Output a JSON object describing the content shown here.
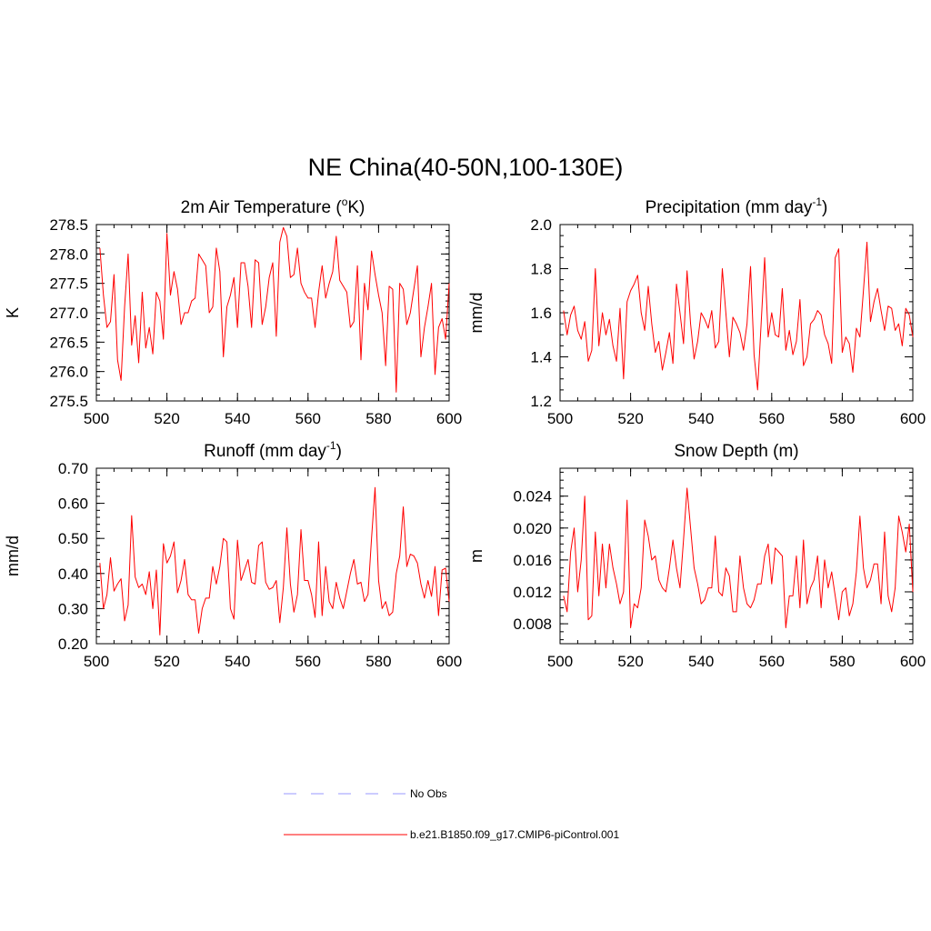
{
  "title": "NE China(40-50N,100-130E)",
  "colors": {
    "series": "#ff0000",
    "legend_obs": "#9999ff",
    "legend_model": "#ff0000",
    "axis": "#000000"
  },
  "legend": {
    "obs_label": "No Obs",
    "model_label": "b.e21.B1850.f09_g17.CMIP6-piControl.001"
  },
  "chart_data": [
    {
      "type": "line",
      "title": "2m Air Temperature (°K)",
      "title_parts": {
        "before": "2m Air Temperature (",
        "sup": "o",
        "after": "K)"
      },
      "xlabel": "",
      "ylabel": "K",
      "xlim": [
        500,
        600
      ],
      "ylim": [
        275.5,
        278.5
      ],
      "xticks": [
        500,
        520,
        540,
        560,
        580,
        600
      ],
      "xtick_labels": [
        "500",
        "520",
        "540",
        "560",
        "580",
        "600"
      ],
      "yticks": [
        275.5,
        276.0,
        276.5,
        277.0,
        277.5,
        278.0,
        278.5
      ],
      "ytick_labels": [
        "275.5",
        "276.0",
        "276.5",
        "277.0",
        "277.5",
        "278.0",
        "278.5"
      ],
      "ymin_step": 0.1,
      "series": [
        {
          "name": "b.e21.B1850.f09_g17.CMIP6-piControl.001",
          "x_start": 501,
          "x_step": 1,
          "values": [
            278.1,
            277.3,
            276.75,
            276.85,
            277.65,
            276.2,
            275.85,
            277.1,
            278.0,
            276.45,
            276.95,
            276.15,
            277.35,
            276.4,
            276.75,
            276.3,
            277.35,
            277.2,
            276.55,
            278.35,
            277.3,
            277.7,
            277.4,
            276.8,
            277.0,
            277.0,
            277.2,
            277.25,
            278.0,
            277.9,
            277.8,
            277.0,
            277.1,
            278.1,
            277.7,
            276.25,
            277.1,
            277.3,
            277.6,
            276.75,
            277.85,
            277.85,
            277.45,
            276.75,
            277.9,
            277.85,
            276.8,
            277.1,
            277.6,
            277.85,
            276.6,
            278.2,
            278.45,
            278.3,
            277.6,
            277.65,
            278.1,
            277.5,
            277.35,
            277.25,
            277.25,
            276.75,
            277.35,
            277.8,
            277.25,
            277.5,
            277.7,
            278.3,
            277.55,
            277.45,
            277.35,
            276.75,
            276.85,
            277.8,
            276.2,
            277.5,
            277.05,
            278.05,
            277.65,
            277.3,
            277.0,
            276.1,
            277.45,
            277.4,
            275.65,
            277.5,
            277.4,
            276.8,
            277.0,
            277.4,
            277.8,
            276.25,
            276.75,
            277.1,
            277.5,
            275.95,
            276.75,
            276.9,
            276.55,
            277.5
          ]
        }
      ]
    },
    {
      "type": "line",
      "title": "Precipitation (mm day-1)",
      "title_parts": {
        "before": "Precipitation (mm day",
        "sup": "-1",
        "after": ")"
      },
      "xlabel": "",
      "ylabel": "mm/d",
      "xlim": [
        500,
        600
      ],
      "ylim": [
        1.2,
        2.0
      ],
      "xticks": [
        500,
        520,
        540,
        560,
        580,
        600
      ],
      "xtick_labels": [
        "500",
        "520",
        "540",
        "560",
        "580",
        "600"
      ],
      "yticks": [
        1.2,
        1.4,
        1.6,
        1.8,
        2.0
      ],
      "ytick_labels": [
        "1.2",
        "1.4",
        "1.6",
        "1.8",
        "2.0"
      ],
      "ymin_step": 0.05,
      "series": [
        {
          "name": "b.e21.B1850.f09_g17.CMIP6-piControl.001",
          "x_start": 501,
          "x_step": 1,
          "values": [
            1.61,
            1.5,
            1.59,
            1.63,
            1.52,
            1.48,
            1.56,
            1.38,
            1.43,
            1.8,
            1.45,
            1.6,
            1.5,
            1.57,
            1.45,
            1.38,
            1.62,
            1.3,
            1.65,
            1.7,
            1.73,
            1.77,
            1.6,
            1.52,
            1.72,
            1.55,
            1.42,
            1.47,
            1.34,
            1.42,
            1.51,
            1.37,
            1.73,
            1.6,
            1.46,
            1.79,
            1.55,
            1.39,
            1.47,
            1.6,
            1.57,
            1.53,
            1.61,
            1.44,
            1.47,
            1.8,
            1.6,
            1.4,
            1.58,
            1.55,
            1.51,
            1.43,
            1.55,
            1.81,
            1.41,
            1.25,
            1.55,
            1.85,
            1.49,
            1.6,
            1.5,
            1.49,
            1.71,
            1.43,
            1.52,
            1.41,
            1.47,
            1.66,
            1.36,
            1.4,
            1.55,
            1.57,
            1.61,
            1.59,
            1.5,
            1.46,
            1.37,
            1.85,
            1.89,
            1.42,
            1.49,
            1.46,
            1.33,
            1.53,
            1.49,
            1.7,
            1.92,
            1.56,
            1.65,
            1.71,
            1.61,
            1.52,
            1.63,
            1.62,
            1.52,
            1.55,
            1.45,
            1.62,
            1.59,
            1.49
          ]
        }
      ]
    },
    {
      "type": "line",
      "title": "Runoff (mm day-1)",
      "title_parts": {
        "before": "Runoff (mm day",
        "sup": "-1",
        "after": ")"
      },
      "xlabel": "",
      "ylabel": "mm/d",
      "xlim": [
        500,
        600
      ],
      "ylim": [
        0.2,
        0.7
      ],
      "xticks": [
        500,
        520,
        540,
        560,
        580,
        600
      ],
      "xtick_labels": [
        "500",
        "520",
        "540",
        "560",
        "580",
        "600"
      ],
      "yticks": [
        0.2,
        0.3,
        0.4,
        0.5,
        0.6,
        0.7
      ],
      "ytick_labels": [
        "0.20",
        "0.30",
        "0.40",
        "0.50",
        "0.60",
        "0.70"
      ],
      "ymin_step": 0.02,
      "series": [
        {
          "name": "b.e21.B1850.f09_g17.CMIP6-piControl.001",
          "x_start": 501,
          "x_step": 1,
          "values": [
            0.43,
            0.3,
            0.34,
            0.445,
            0.35,
            0.37,
            0.385,
            0.265,
            0.31,
            0.565,
            0.39,
            0.36,
            0.37,
            0.34,
            0.405,
            0.3,
            0.41,
            0.225,
            0.485,
            0.43,
            0.45,
            0.49,
            0.345,
            0.38,
            0.44,
            0.34,
            0.325,
            0.325,
            0.23,
            0.3,
            0.33,
            0.33,
            0.42,
            0.37,
            0.42,
            0.5,
            0.49,
            0.3,
            0.27,
            0.495,
            0.38,
            0.41,
            0.44,
            0.375,
            0.37,
            0.48,
            0.49,
            0.375,
            0.355,
            0.36,
            0.38,
            0.26,
            0.36,
            0.53,
            0.37,
            0.29,
            0.34,
            0.525,
            0.38,
            0.38,
            0.34,
            0.275,
            0.49,
            0.28,
            0.42,
            0.32,
            0.3,
            0.375,
            0.33,
            0.3,
            0.35,
            0.4,
            0.44,
            0.37,
            0.375,
            0.32,
            0.34,
            0.5,
            0.645,
            0.38,
            0.3,
            0.32,
            0.28,
            0.29,
            0.4,
            0.45,
            0.59,
            0.42,
            0.455,
            0.45,
            0.43,
            0.37,
            0.33,
            0.38,
            0.335,
            0.42,
            0.28,
            0.41,
            0.415,
            0.32
          ]
        }
      ]
    },
    {
      "type": "line",
      "title": "Snow Depth (m)",
      "title_parts": {
        "before": "Snow Depth (m)",
        "sup": "",
        "after": ""
      },
      "xlabel": "",
      "ylabel": "m",
      "xlim": [
        500,
        600
      ],
      "ylim": [
        0.0055,
        0.0275
      ],
      "xticks": [
        500,
        520,
        540,
        560,
        580,
        600
      ],
      "xtick_labels": [
        "500",
        "520",
        "540",
        "560",
        "580",
        "600"
      ],
      "yticks": [
        0.008,
        0.012,
        0.016,
        0.02,
        0.024
      ],
      "ytick_labels": [
        "0.008",
        "0.012",
        "0.016",
        "0.020",
        "0.024"
      ],
      "ymin_step": 0.001,
      "series": [
        {
          "name": "b.e21.B1850.f09_g17.CMIP6-piControl.001",
          "x_start": 501,
          "x_step": 1,
          "values": [
            0.0115,
            0.0095,
            0.017,
            0.02,
            0.012,
            0.016,
            0.024,
            0.0085,
            0.009,
            0.0195,
            0.0115,
            0.018,
            0.0125,
            0.018,
            0.015,
            0.013,
            0.0105,
            0.012,
            0.0235,
            0.0075,
            0.0105,
            0.01,
            0.0125,
            0.021,
            0.019,
            0.016,
            0.0165,
            0.0135,
            0.0125,
            0.012,
            0.015,
            0.0185,
            0.015,
            0.0125,
            0.0185,
            0.025,
            0.02,
            0.015,
            0.013,
            0.0105,
            0.011,
            0.0125,
            0.0125,
            0.019,
            0.012,
            0.0115,
            0.015,
            0.014,
            0.0095,
            0.0095,
            0.0165,
            0.0125,
            0.0105,
            0.01,
            0.011,
            0.013,
            0.013,
            0.0165,
            0.018,
            0.013,
            0.0175,
            0.017,
            0.0165,
            0.0075,
            0.0115,
            0.0115,
            0.0165,
            0.01,
            0.0185,
            0.0105,
            0.0125,
            0.0135,
            0.0165,
            0.01,
            0.016,
            0.0125,
            0.0145,
            0.0115,
            0.0085,
            0.012,
            0.0125,
            0.009,
            0.0105,
            0.0145,
            0.0215,
            0.015,
            0.0125,
            0.0135,
            0.0155,
            0.0155,
            0.0105,
            0.0195,
            0.0115,
            0.0095,
            0.0125,
            0.0215,
            0.0195,
            0.017,
            0.0205,
            0.012
          ]
        }
      ]
    }
  ]
}
